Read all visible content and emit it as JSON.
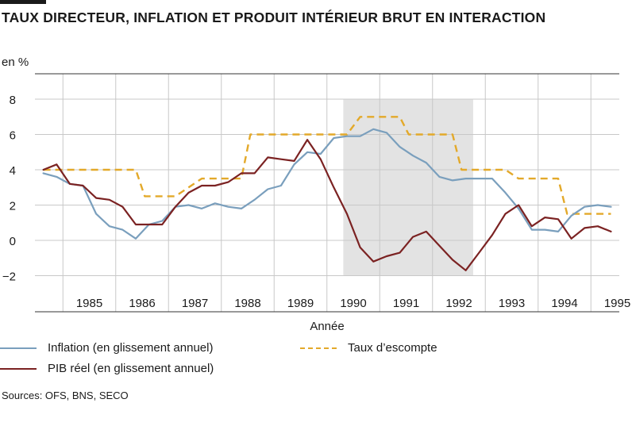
{
  "title": "TAUX DIRECTEUR, INFLATION ET PRODUIT INTÉRIEUR BRUT EN INTERACTION",
  "unit": "en %",
  "source": "Sources: OFS, BNS, SECO",
  "colors": {
    "inflation": "#7a9fbd",
    "pib": "#7b2222",
    "taux": "#e3a92a",
    "shade": "#e3e3e3",
    "grid": "#c8c8c8"
  },
  "chart_data": {
    "type": "line",
    "title": "TAUX DIRECTEUR, INFLATION ET PRODUIT INTÉRIEUR BRUT EN INTERACTION",
    "xlabel": "Année",
    "ylabel": "en %",
    "ylim": [
      -2,
      8
    ],
    "xlim": [
      1984.5,
      1996.0
    ],
    "yticks": [
      8,
      6,
      4,
      2,
      0,
      -2
    ],
    "ytick_labels": [
      "8",
      "6",
      "4",
      "2",
      "0",
      "−2"
    ],
    "xticks": [
      "1985",
      "1986",
      "1987",
      "1988",
      "1989",
      "1990",
      "1991",
      "1992",
      "1993",
      "1994",
      "1995"
    ],
    "grid": true,
    "legend": "bottom",
    "shaded_period": [
      1990.31,
      1992.77
    ],
    "series": [
      {
        "name": "Inflation (en glissement annuel)",
        "key": "inflation",
        "x": [
          1984.63,
          1984.88,
          1985.13,
          1985.38,
          1985.63,
          1985.88,
          1986.13,
          1986.38,
          1986.63,
          1986.88,
          1987.13,
          1987.38,
          1987.63,
          1987.88,
          1988.13,
          1988.38,
          1988.63,
          1988.88,
          1989.13,
          1989.38,
          1989.63,
          1989.88,
          1990.13,
          1990.38,
          1990.63,
          1990.88,
          1991.13,
          1991.38,
          1991.63,
          1991.88,
          1992.13,
          1992.38,
          1992.63,
          1992.88,
          1993.13,
          1993.38,
          1993.63,
          1993.88,
          1994.13,
          1994.38,
          1994.63,
          1994.88,
          1995.13,
          1995.38
        ],
        "values": [
          3.8,
          3.6,
          3.2,
          3.1,
          1.5,
          0.8,
          0.6,
          0.1,
          0.9,
          1.1,
          1.9,
          2.0,
          1.8,
          2.1,
          1.9,
          1.8,
          2.3,
          2.9,
          3.1,
          4.3,
          5.0,
          4.9,
          5.8,
          5.9,
          5.9,
          6.3,
          6.1,
          5.3,
          4.8,
          4.4,
          3.6,
          3.4,
          3.5,
          3.5,
          3.5,
          2.7,
          1.8,
          0.6,
          0.6,
          0.5,
          1.4,
          1.9,
          2.0,
          1.9
        ]
      },
      {
        "name": "PIB réel (en glissement annuel)",
        "key": "pib",
        "x": [
          1984.63,
          1984.88,
          1985.13,
          1985.38,
          1985.63,
          1985.88,
          1986.13,
          1986.38,
          1986.63,
          1986.88,
          1987.13,
          1987.38,
          1987.63,
          1987.88,
          1988.13,
          1988.38,
          1988.63,
          1988.88,
          1989.13,
          1989.38,
          1989.63,
          1989.88,
          1990.13,
          1990.38,
          1990.63,
          1990.88,
          1991.13,
          1991.38,
          1991.63,
          1991.88,
          1992.13,
          1992.38,
          1992.63,
          1992.88,
          1993.13,
          1993.38,
          1993.63,
          1993.88,
          1994.13,
          1994.38,
          1994.63,
          1994.88,
          1995.13,
          1995.38
        ],
        "values": [
          4.0,
          4.3,
          3.2,
          3.1,
          2.4,
          2.3,
          1.9,
          0.9,
          0.9,
          0.9,
          1.9,
          2.7,
          3.1,
          3.1,
          3.3,
          3.8,
          3.8,
          4.7,
          4.6,
          4.5,
          5.7,
          4.6,
          3.0,
          1.5,
          -0.4,
          -1.2,
          -0.9,
          -0.7,
          0.2,
          0.5,
          -0.3,
          -1.1,
          -1.7,
          -0.7,
          0.3,
          1.5,
          2.0,
          0.8,
          1.3,
          1.2,
          0.1,
          0.7,
          0.8,
          0.5
        ]
      },
      {
        "name": "Taux d’escompte",
        "key": "taux",
        "step": true,
        "x": [
          1984.63,
          1986.38,
          1986.55,
          1987.13,
          1987.38,
          1987.63,
          1988.13,
          1988.38,
          1988.55,
          1990.15,
          1990.38,
          1990.63,
          1991.13,
          1991.38,
          1991.55,
          1992.38,
          1992.55,
          1993.13,
          1993.38,
          1993.63,
          1994.13,
          1994.38,
          1994.55,
          1995.13,
          1995.38
        ],
        "values": [
          4.0,
          4.0,
          2.5,
          2.5,
          3.0,
          3.5,
          3.5,
          3.5,
          6.0,
          6.0,
          6.0,
          7.0,
          7.0,
          7.0,
          6.0,
          6.0,
          4.0,
          4.0,
          4.0,
          3.5,
          3.5,
          3.5,
          1.5,
          1.5,
          1.5
        ]
      }
    ]
  },
  "legend": {
    "inflation": "Inflation (en glissement annuel)",
    "pib": "PIB réel (en glissement annuel)",
    "taux": "Taux d’escompte"
  }
}
